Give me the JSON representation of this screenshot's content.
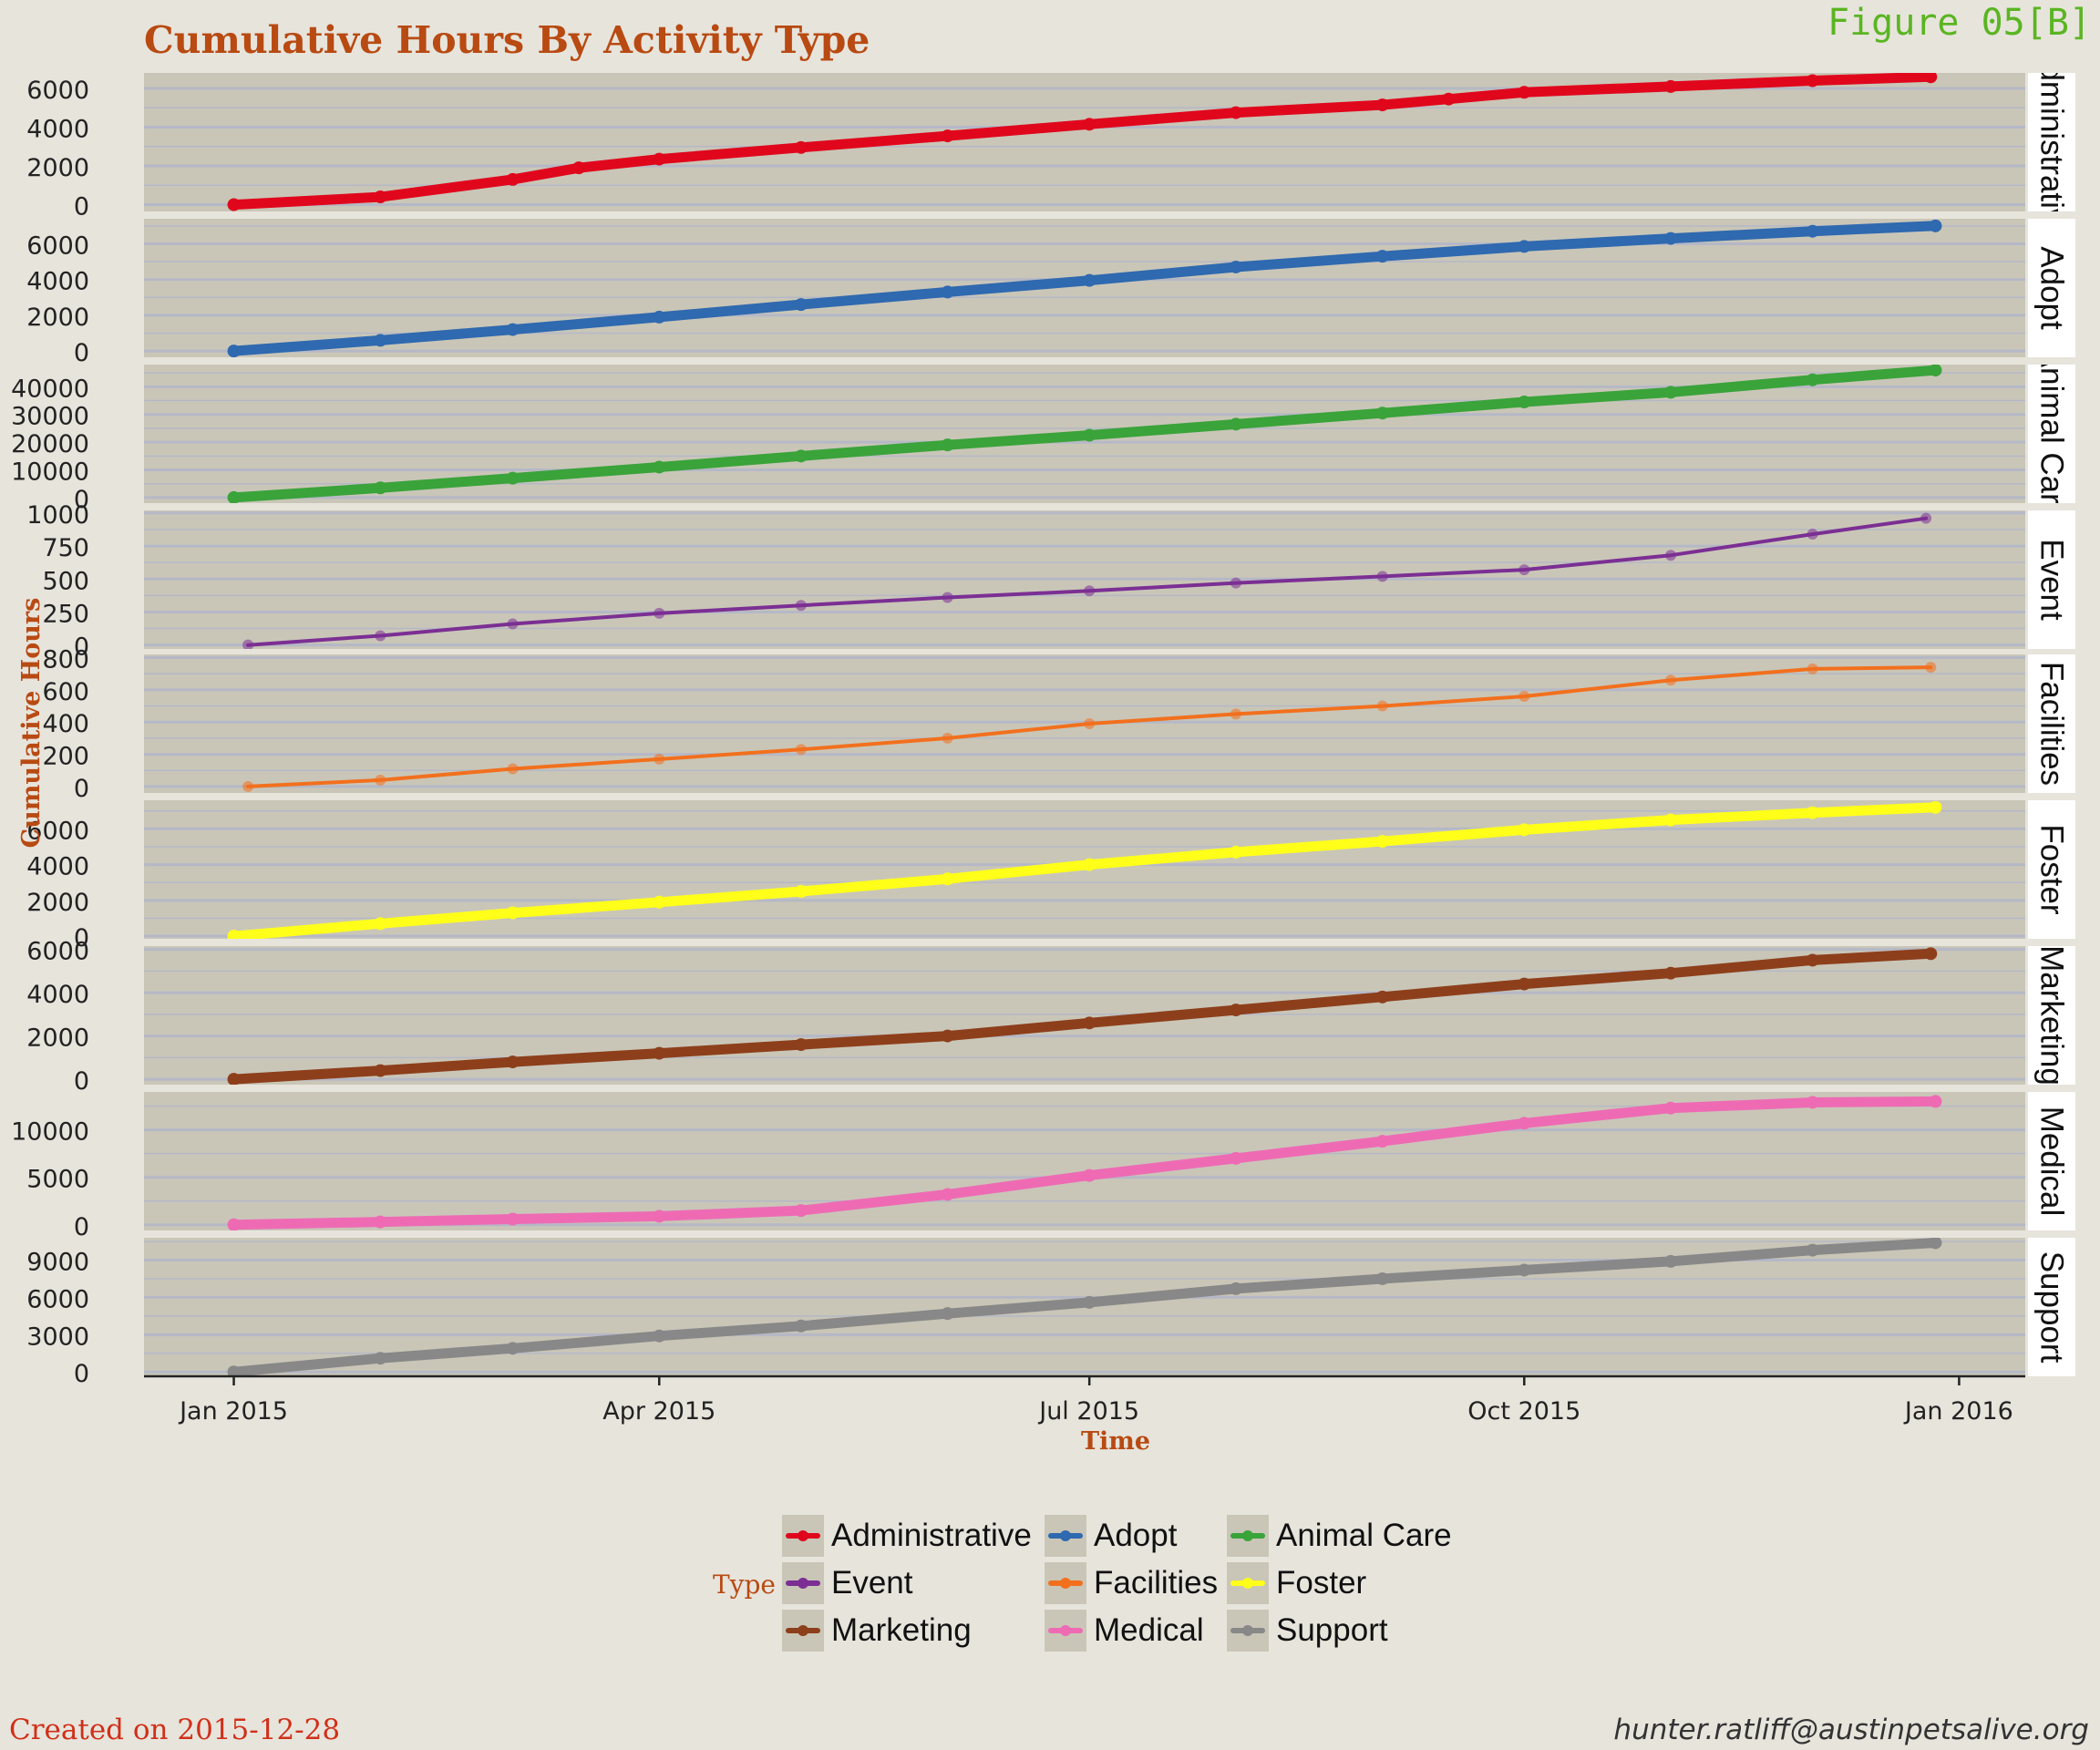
{
  "title": "Cumulative Hours By Activity Type",
  "figure_label": "Figure 05[B]",
  "footer": {
    "created": "Created on 2015-12-28",
    "email": "hunter.ratliff@austinpetsalive.org"
  },
  "legend": {
    "title": "Type",
    "items": [
      {
        "label": "Administrative",
        "color": "#e0071c"
      },
      {
        "label": "Adopt",
        "color": "#2f69af"
      },
      {
        "label": "Animal Care",
        "color": "#3aa33a"
      },
      {
        "label": "Event",
        "color": "#7b2f93"
      },
      {
        "label": "Facilities",
        "color": "#f2701d"
      },
      {
        "label": "Foster",
        "color": "#ffff1a"
      },
      {
        "label": "Marketing",
        "color": "#8d3f1b"
      },
      {
        "label": "Medical",
        "color": "#ee6bb4"
      },
      {
        "label": "Support",
        "color": "#888888"
      }
    ]
  },
  "colors": {
    "panel_bg": "#c9c6b8",
    "grid": "#b5b8c6",
    "strip_bg": "#ffffff",
    "axis_title": "#b84a12",
    "page_bg": "#e7e4dc"
  },
  "chart_data": {
    "type": "line",
    "facet": "Type",
    "xlabel": "Time",
    "ylabel": "Cumulative Hours",
    "x_ticks": [
      "Jan 2015",
      "Apr 2015",
      "Jul 2015",
      "Oct 2015",
      "Jan 2016"
    ],
    "x_tick_dates": [
      "2015-01-01",
      "2015-04-01",
      "2015-07-01",
      "2015-10-01",
      "2016-01-01"
    ],
    "xlim": [
      "2014-12-13",
      "2016-01-15"
    ],
    "grid": true,
    "legend_position": "bottom",
    "panels": [
      {
        "name": "Administrative",
        "strip": "Administrative",
        "color": "#e0071c",
        "yticks": [
          0,
          2000,
          4000,
          6000
        ],
        "ytick_labels": [
          "0",
          "2000",
          "4000",
          "6000"
        ],
        "ylim": [
          -350,
          6800
        ],
        "dates": [
          "2015-01-01",
          "2015-02-01",
          "2015-03-01",
          "2015-03-15",
          "2015-04-01",
          "2015-05-01",
          "2015-06-01",
          "2015-07-01",
          "2015-08-01",
          "2015-09-01",
          "2015-09-15",
          "2015-10-01",
          "2015-11-01",
          "2015-12-01",
          "2015-12-26"
        ],
        "values": [
          0,
          400,
          1300,
          1900,
          2350,
          2950,
          3550,
          4150,
          4750,
          5150,
          5450,
          5800,
          6100,
          6400,
          6600
        ]
      },
      {
        "name": "Adopt",
        "strip": "Adopt",
        "color": "#2f69af",
        "yticks": [
          0,
          2000,
          4000,
          6000
        ],
        "ytick_labels": [
          "0",
          "2000",
          "4000",
          "6000"
        ],
        "ylim": [
          -350,
          7400
        ],
        "dates": [
          "2015-01-01",
          "2015-02-01",
          "2015-03-01",
          "2015-04-01",
          "2015-05-01",
          "2015-06-01",
          "2015-07-01",
          "2015-08-01",
          "2015-09-01",
          "2015-10-01",
          "2015-11-01",
          "2015-12-01",
          "2015-12-27"
        ],
        "values": [
          0,
          600,
          1200,
          1900,
          2600,
          3300,
          3950,
          4700,
          5300,
          5850,
          6300,
          6700,
          7000
        ]
      },
      {
        "name": "Animal Care",
        "strip": "Animal Care",
        "color": "#3aa33a",
        "yticks": [
          0,
          10000,
          20000,
          30000,
          40000
        ],
        "ytick_labels": [
          "0",
          "10000",
          "20000",
          "30000",
          "40000"
        ],
        "ylim": [
          -2000,
          48000
        ],
        "dates": [
          "2015-01-01",
          "2015-02-01",
          "2015-03-01",
          "2015-04-01",
          "2015-05-01",
          "2015-06-01",
          "2015-07-01",
          "2015-08-01",
          "2015-09-01",
          "2015-10-01",
          "2015-11-01",
          "2015-12-01",
          "2015-12-27"
        ],
        "values": [
          0,
          3500,
          7000,
          11000,
          15000,
          19000,
          22500,
          26500,
          30500,
          34500,
          38000,
          42500,
          46000
        ]
      },
      {
        "name": "Event",
        "strip": "Event",
        "color": "#7b2f93",
        "yticks": [
          0,
          250,
          500,
          750,
          1000
        ],
        "ytick_labels": [
          "0",
          "250",
          "500",
          "750",
          "1000"
        ],
        "ylim": [
          -30,
          1020
        ],
        "dates": [
          "2015-01-04",
          "2015-02-01",
          "2015-03-01",
          "2015-04-01",
          "2015-05-01",
          "2015-06-01",
          "2015-07-01",
          "2015-08-01",
          "2015-09-01",
          "2015-10-01",
          "2015-11-01",
          "2015-12-01",
          "2015-12-25"
        ],
        "values": [
          0,
          70,
          160,
          240,
          300,
          360,
          410,
          470,
          520,
          570,
          680,
          840,
          960
        ]
      },
      {
        "name": "Facilities",
        "strip": "Facilities",
        "color": "#f2701d",
        "yticks": [
          0,
          200,
          400,
          600,
          800
        ],
        "ytick_labels": [
          "0",
          "200",
          "400",
          "600",
          "800"
        ],
        "ylim": [
          -40,
          820
        ],
        "dates": [
          "2015-01-04",
          "2015-02-01",
          "2015-03-01",
          "2015-04-01",
          "2015-05-01",
          "2015-06-01",
          "2015-07-01",
          "2015-08-01",
          "2015-09-01",
          "2015-10-01",
          "2015-11-01",
          "2015-12-01",
          "2015-12-26"
        ],
        "values": [
          0,
          40,
          110,
          170,
          230,
          300,
          390,
          450,
          500,
          560,
          660,
          730,
          740
        ]
      },
      {
        "name": "Foster",
        "strip": "Foster",
        "color": "#ffff1a",
        "yticks": [
          0,
          2000,
          4000,
          6000
        ],
        "ytick_labels": [
          "0",
          "2000",
          "4000",
          "6000"
        ],
        "ylim": [
          -150,
          7600
        ],
        "dates": [
          "2015-01-01",
          "2015-02-01",
          "2015-03-01",
          "2015-04-01",
          "2015-05-01",
          "2015-06-01",
          "2015-07-01",
          "2015-08-01",
          "2015-09-01",
          "2015-10-01",
          "2015-11-01",
          "2015-12-01",
          "2015-12-27"
        ],
        "values": [
          0,
          700,
          1300,
          1900,
          2500,
          3200,
          4000,
          4700,
          5300,
          5950,
          6500,
          6900,
          7200
        ]
      },
      {
        "name": "Marketing",
        "strip": "Marketing",
        "color": "#8d3f1b",
        "yticks": [
          0,
          2000,
          4000,
          6000
        ],
        "ytick_labels": [
          "0",
          "2000",
          "4000",
          "6000"
        ],
        "ylim": [
          -250,
          6150
        ],
        "dates": [
          "2015-01-01",
          "2015-02-01",
          "2015-03-01",
          "2015-04-01",
          "2015-05-01",
          "2015-06-01",
          "2015-07-01",
          "2015-08-01",
          "2015-09-01",
          "2015-10-01",
          "2015-11-01",
          "2015-12-01",
          "2015-12-26"
        ],
        "values": [
          0,
          400,
          800,
          1200,
          1600,
          2000,
          2600,
          3200,
          3800,
          4400,
          4900,
          5500,
          5800
        ]
      },
      {
        "name": "Medical",
        "strip": "Medical",
        "color": "#ee6bb4",
        "yticks": [
          0,
          5000,
          10000
        ],
        "ytick_labels": [
          "0",
          "5000",
          "10000"
        ],
        "ylim": [
          -600,
          14000
        ],
        "dates": [
          "2015-01-01",
          "2015-02-01",
          "2015-03-01",
          "2015-04-01",
          "2015-05-01",
          "2015-06-01",
          "2015-07-01",
          "2015-08-01",
          "2015-09-01",
          "2015-10-01",
          "2015-11-01",
          "2015-12-01",
          "2015-12-27"
        ],
        "values": [
          0,
          300,
          600,
          900,
          1500,
          3200,
          5200,
          7000,
          8800,
          10700,
          12300,
          12900,
          13000
        ]
      },
      {
        "name": "Support",
        "strip": "Support",
        "color": "#888888",
        "yticks": [
          0,
          3000,
          6000,
          9000
        ],
        "ytick_labels": [
          "0",
          "3000",
          "6000",
          "9000"
        ],
        "ylim": [
          -350,
          10800
        ],
        "dates": [
          "2015-01-01",
          "2015-02-01",
          "2015-03-01",
          "2015-04-01",
          "2015-05-01",
          "2015-06-01",
          "2015-07-01",
          "2015-08-01",
          "2015-09-01",
          "2015-10-01",
          "2015-11-01",
          "2015-12-01",
          "2015-12-27"
        ],
        "values": [
          0,
          1100,
          1900,
          2900,
          3700,
          4700,
          5600,
          6700,
          7500,
          8200,
          8900,
          9800,
          10400
        ]
      }
    ]
  }
}
